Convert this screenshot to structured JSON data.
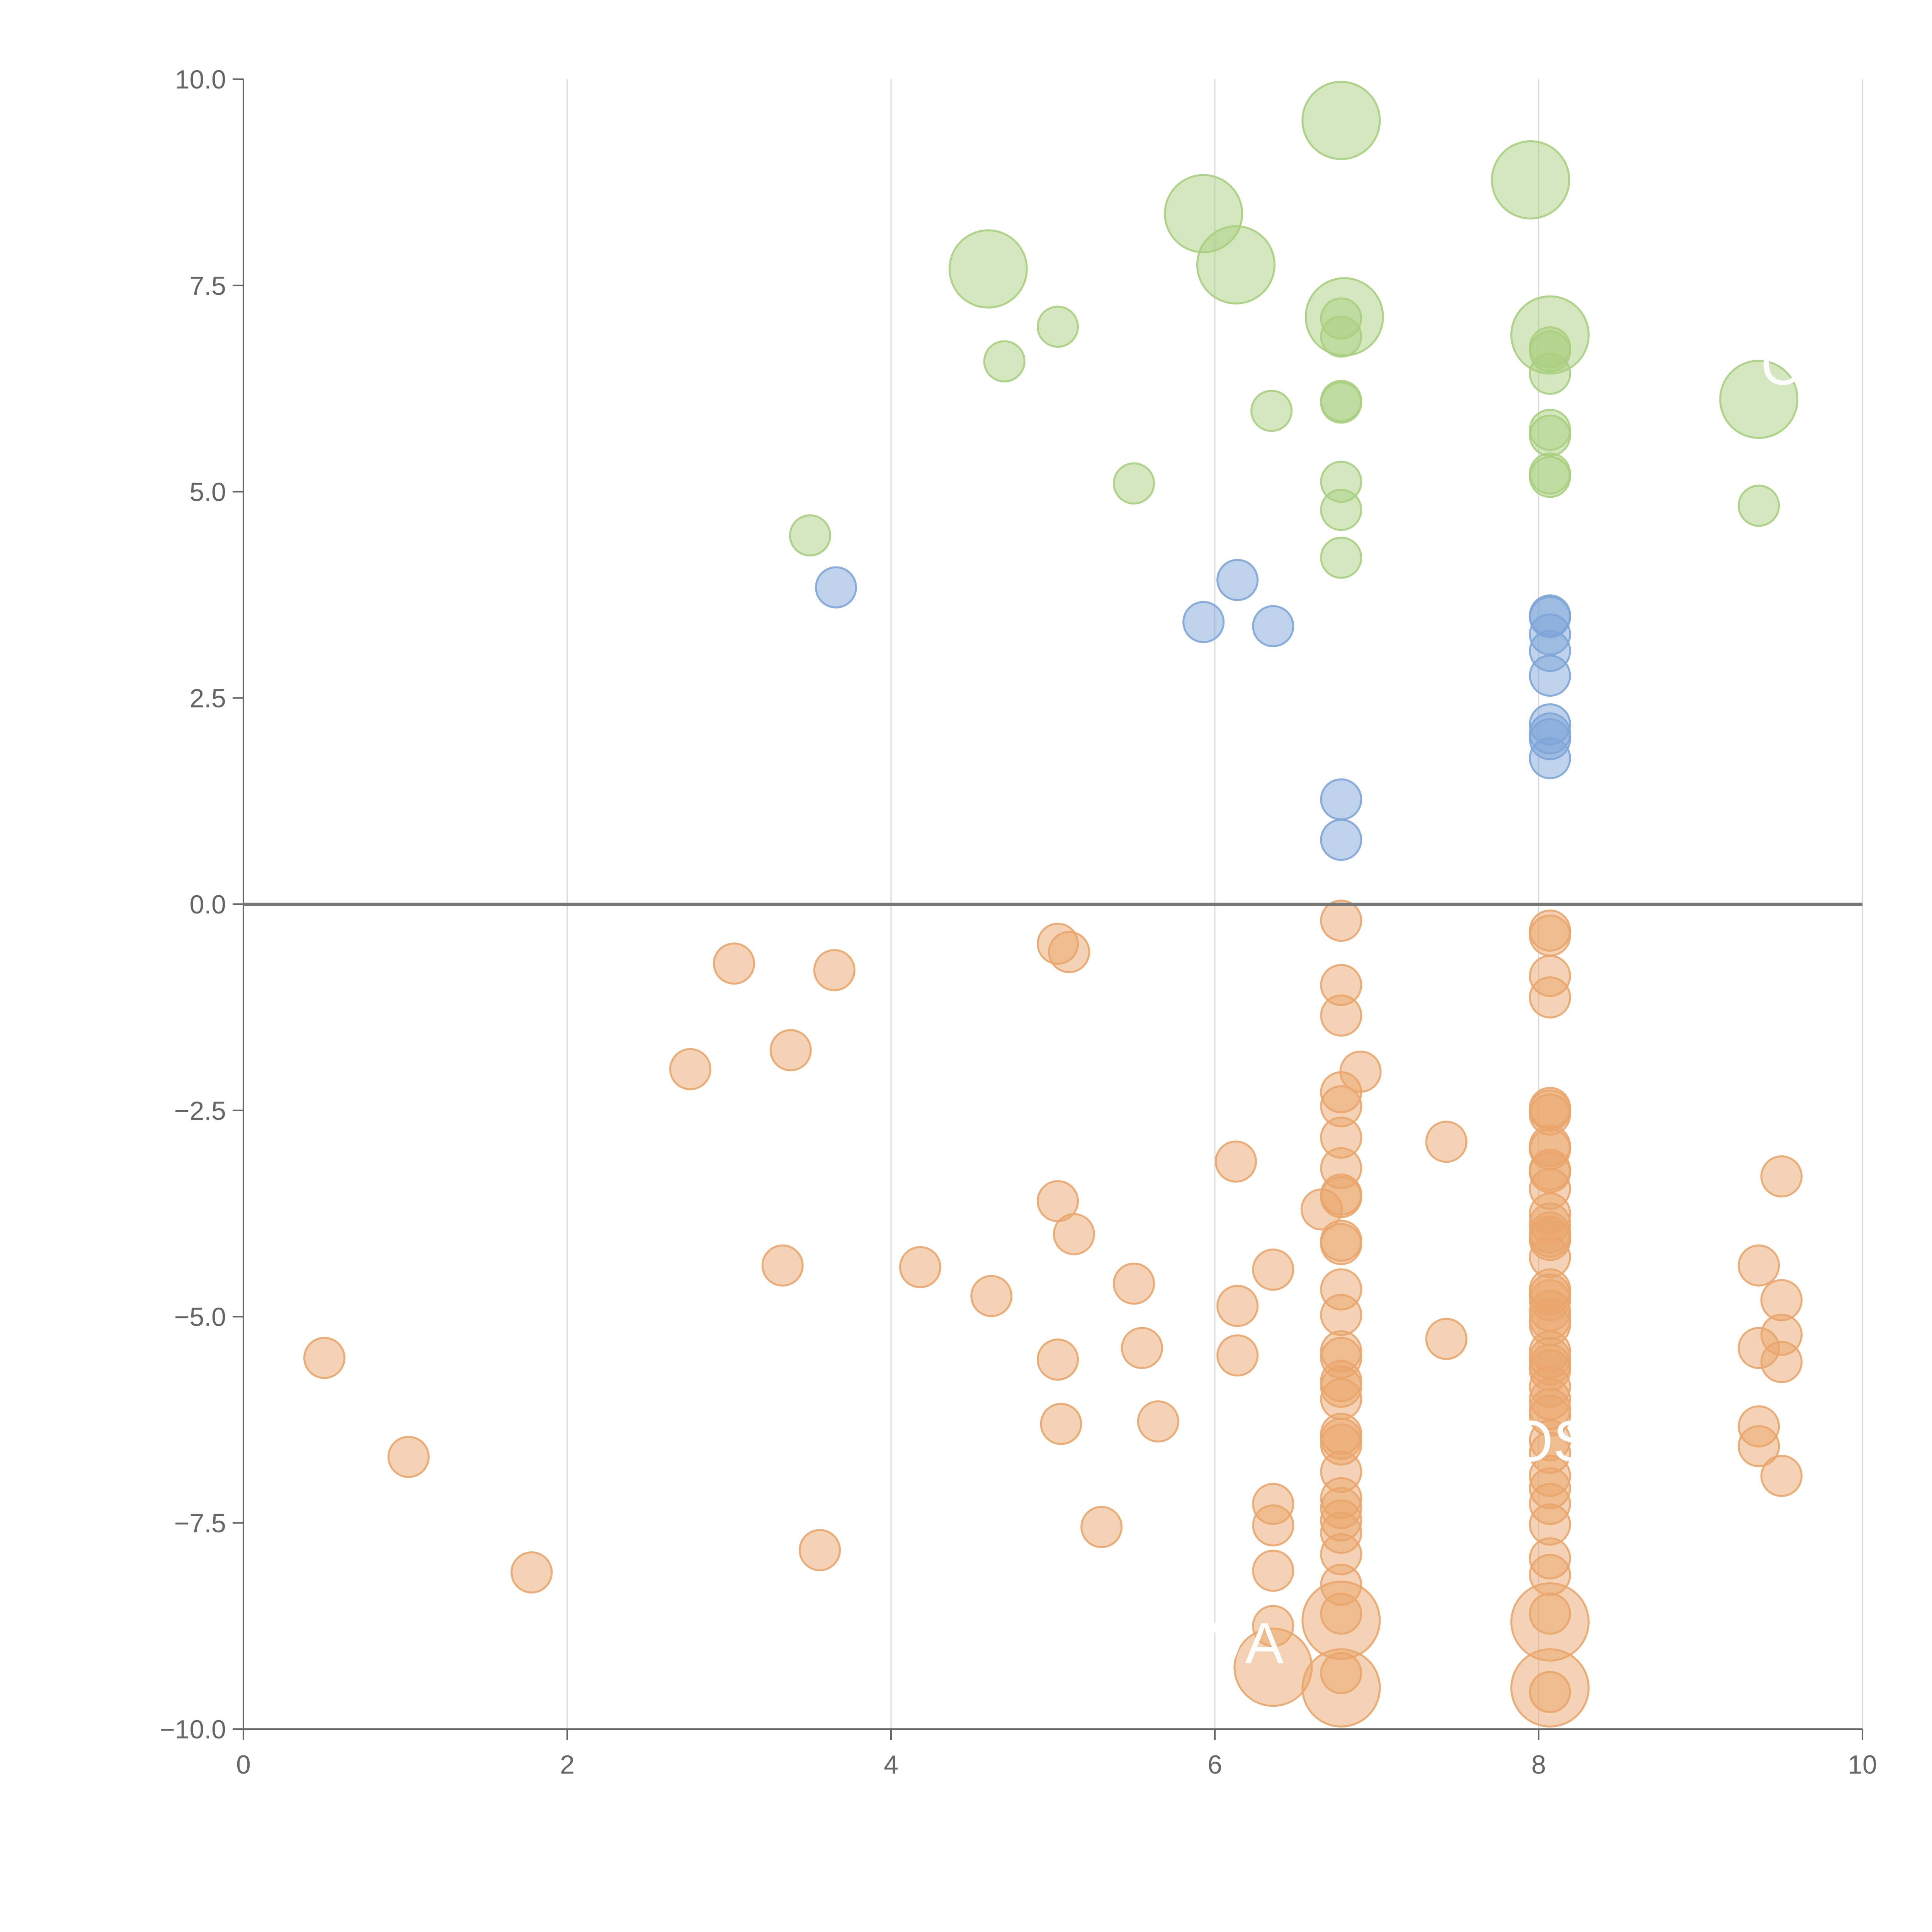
{
  "chart_data": {
    "type": "scatter",
    "title": "",
    "xlabel": "",
    "ylabel": "",
    "xlim": [
      0,
      10
    ],
    "ylim": [
      -10,
      10
    ],
    "x_ticks": [
      0,
      2,
      4,
      6,
      8,
      10
    ],
    "y_ticks": [
      -10,
      -7.5,
      -5,
      -2.5,
      0,
      2.5,
      5,
      7.5,
      10
    ],
    "x_tick_labels": [
      "0",
      "2",
      "4",
      "6",
      "8",
      "10"
    ],
    "y_tick_labels": [
      "−10.0",
      "−7.5",
      "−5.0",
      "−2.5",
      "0.0",
      "2.5",
      "5.0",
      "7.5",
      "10.0"
    ],
    "grid": "vertical",
    "reference_line_y": 0,
    "series": [
      {
        "name": "green",
        "color": "#a9cf80",
        "points": [
          [
            3.5,
            4.47,
            1
          ],
          [
            4.7,
            6.58,
            1
          ],
          [
            5.03,
            7.0,
            1
          ],
          [
            5.5,
            5.1,
            1
          ],
          [
            6.35,
            5.98,
            1
          ],
          [
            6.78,
            4.2,
            1
          ],
          [
            6.78,
            4.78,
            1
          ],
          [
            6.78,
            5.12,
            1
          ],
          [
            6.78,
            6.08,
            1
          ],
          [
            6.78,
            6.1,
            1
          ],
          [
            6.78,
            6.88,
            1
          ],
          [
            6.78,
            7.1,
            1
          ],
          [
            8.07,
            5.18,
            1
          ],
          [
            8.07,
            5.22,
            1
          ],
          [
            8.07,
            5.68,
            1
          ],
          [
            8.07,
            5.75,
            1
          ],
          [
            8.07,
            6.43,
            1
          ],
          [
            8.07,
            6.7,
            1
          ],
          [
            8.07,
            6.75,
            1
          ],
          [
            9.36,
            4.83,
            1
          ],
          [
            4.6,
            7.7,
            2
          ],
          [
            5.93,
            8.37,
            2
          ],
          [
            6.13,
            7.75,
            2
          ],
          [
            6.78,
            9.5,
            2
          ],
          [
            6.8,
            7.12,
            2
          ],
          [
            7.95,
            8.78,
            2
          ],
          [
            8.07,
            6.9,
            2
          ],
          [
            9.36,
            6.12,
            2
          ]
        ]
      },
      {
        "name": "blue",
        "color": "#7ea5d8",
        "points": [
          [
            3.66,
            3.84,
            1
          ],
          [
            5.93,
            3.42,
            1
          ],
          [
            6.14,
            3.93,
            1
          ],
          [
            6.36,
            3.37,
            1
          ],
          [
            6.78,
            0.78,
            1
          ],
          [
            6.78,
            1.27,
            1
          ],
          [
            8.07,
            1.77,
            1
          ],
          [
            8.07,
            2.0,
            1
          ],
          [
            8.07,
            2.07,
            1
          ],
          [
            8.07,
            2.18,
            1
          ],
          [
            8.07,
            2.77,
            1
          ],
          [
            8.07,
            3.07,
            1
          ],
          [
            8.07,
            3.27,
            1
          ],
          [
            8.07,
            3.48,
            1
          ],
          [
            8.07,
            3.5,
            1
          ]
        ]
      },
      {
        "name": "orange",
        "color": "#eaa56c",
        "points": [
          [
            0.5,
            -5.5,
            1
          ],
          [
            1.02,
            -6.7,
            1
          ],
          [
            1.78,
            -8.1,
            1
          ],
          [
            2.76,
            -2.0,
            1
          ],
          [
            3.03,
            -0.72,
            1
          ],
          [
            3.33,
            -4.38,
            1
          ],
          [
            3.38,
            -1.77,
            1
          ],
          [
            3.56,
            -7.83,
            1
          ],
          [
            3.65,
            -0.8,
            1
          ],
          [
            4.18,
            -4.4,
            1
          ],
          [
            4.62,
            -4.75,
            1
          ],
          [
            5.03,
            -0.48,
            1
          ],
          [
            5.1,
            -0.58,
            1
          ],
          [
            5.03,
            -3.6,
            1
          ],
          [
            5.13,
            -4.0,
            1
          ],
          [
            5.03,
            -5.52,
            1
          ],
          [
            5.05,
            -6.3,
            1
          ],
          [
            5.3,
            -7.55,
            1
          ],
          [
            5.5,
            -4.6,
            1
          ],
          [
            5.55,
            -5.38,
            1
          ],
          [
            5.65,
            -6.27,
            1
          ],
          [
            6.13,
            -3.12,
            1
          ],
          [
            6.14,
            -4.87,
            1
          ],
          [
            6.14,
            -5.47,
            1
          ],
          [
            6.36,
            -4.43,
            1
          ],
          [
            6.36,
            -7.27,
            1
          ],
          [
            6.36,
            -7.53,
            1
          ],
          [
            6.36,
            -8.08,
            1
          ],
          [
            6.36,
            -8.75,
            1
          ],
          [
            6.66,
            -3.7,
            1
          ],
          [
            6.9,
            -2.03,
            1
          ],
          [
            7.43,
            -2.88,
            1
          ],
          [
            7.43,
            -5.27,
            1
          ],
          [
            6.78,
            -0.2,
            1
          ],
          [
            6.78,
            -0.98,
            1
          ],
          [
            6.78,
            -1.35,
            1
          ],
          [
            6.78,
            -2.28,
            1
          ],
          [
            6.78,
            -2.45,
            1
          ],
          [
            6.78,
            -2.83,
            1
          ],
          [
            6.78,
            -3.2,
            1
          ],
          [
            6.78,
            -3.52,
            1
          ],
          [
            6.78,
            -3.55,
            1
          ],
          [
            6.78,
            -4.08,
            1
          ],
          [
            6.78,
            -4.12,
            1
          ],
          [
            6.78,
            -4.67,
            1
          ],
          [
            6.78,
            -4.98,
            1
          ],
          [
            6.78,
            -5.42,
            1
          ],
          [
            6.78,
            -5.5,
            1
          ],
          [
            6.78,
            -5.78,
            1
          ],
          [
            6.78,
            -5.85,
            1
          ],
          [
            6.78,
            -6.0,
            1
          ],
          [
            6.78,
            -6.42,
            1
          ],
          [
            6.78,
            -6.48,
            1
          ],
          [
            6.78,
            -6.55,
            1
          ],
          [
            6.78,
            -6.88,
            1
          ],
          [
            6.78,
            -7.2,
            1
          ],
          [
            6.78,
            -7.32,
            1
          ],
          [
            6.78,
            -7.47,
            1
          ],
          [
            6.78,
            -7.62,
            1
          ],
          [
            6.78,
            -7.88,
            1
          ],
          [
            6.78,
            -8.25,
            1
          ],
          [
            6.78,
            -8.6,
            1
          ],
          [
            6.78,
            -9.32,
            1
          ],
          [
            8.07,
            -0.32,
            1
          ],
          [
            8.07,
            -0.38,
            1
          ],
          [
            8.07,
            -0.87,
            1
          ],
          [
            8.07,
            -1.13,
            1
          ],
          [
            8.07,
            -2.47,
            1
          ],
          [
            8.07,
            -2.5,
            1
          ],
          [
            8.07,
            -2.55,
            1
          ],
          [
            8.07,
            -2.93,
            1
          ],
          [
            8.07,
            -2.97,
            1
          ],
          [
            8.07,
            -3.22,
            1
          ],
          [
            8.07,
            -3.25,
            1
          ],
          [
            8.07,
            -3.45,
            1
          ],
          [
            8.07,
            -3.75,
            1
          ],
          [
            8.07,
            -3.87,
            1
          ],
          [
            8.07,
            -3.98,
            1
          ],
          [
            8.07,
            -4.03,
            1
          ],
          [
            8.07,
            -4.07,
            1
          ],
          [
            8.07,
            -4.28,
            1
          ],
          [
            8.07,
            -4.67,
            1
          ],
          [
            8.07,
            -4.73,
            1
          ],
          [
            8.07,
            -4.8,
            1
          ],
          [
            8.07,
            -4.93,
            1
          ],
          [
            8.07,
            -5.03,
            1
          ],
          [
            8.07,
            -5.1,
            1
          ],
          [
            8.07,
            -5.42,
            1
          ],
          [
            8.07,
            -5.5,
            1
          ],
          [
            8.07,
            -5.58,
            1
          ],
          [
            8.07,
            -5.65,
            1
          ],
          [
            8.07,
            -5.85,
            1
          ],
          [
            8.07,
            -6.0,
            1
          ],
          [
            8.07,
            -6.12,
            1
          ],
          [
            8.07,
            -6.2,
            1
          ],
          [
            8.07,
            -6.5,
            1
          ],
          [
            8.07,
            -6.65,
            1
          ],
          [
            8.07,
            -6.93,
            1
          ],
          [
            8.07,
            -7.08,
            1
          ],
          [
            8.07,
            -7.27,
            1
          ],
          [
            8.07,
            -7.52,
            1
          ],
          [
            8.07,
            -7.93,
            1
          ],
          [
            8.07,
            -8.13,
            1
          ],
          [
            8.07,
            -8.6,
            1
          ],
          [
            8.07,
            -9.55,
            1
          ],
          [
            9.36,
            -4.38,
            1
          ],
          [
            9.36,
            -5.38,
            1
          ],
          [
            9.36,
            -6.33,
            1
          ],
          [
            9.36,
            -6.57,
            1
          ],
          [
            9.5,
            -3.3,
            1
          ],
          [
            9.5,
            -4.8,
            1
          ],
          [
            9.5,
            -5.22,
            1
          ],
          [
            9.5,
            -5.55,
            1
          ],
          [
            9.5,
            -6.93,
            1
          ],
          [
            6.36,
            -9.25,
            2
          ],
          [
            6.78,
            -8.68,
            2
          ],
          [
            6.78,
            -9.5,
            2
          ],
          [
            8.07,
            -8.7,
            2
          ],
          [
            8.07,
            -9.5,
            2
          ]
        ]
      }
    ],
    "annotations": [
      {
        "text": "OS",
        "x": 8.07,
        "y": -6.75
      },
      {
        "text": "VA",
        "x": 6.2,
        "y": -9.2
      },
      {
        "text": "Co",
        "x": 9.6,
        "y": 6.3
      }
    ]
  }
}
